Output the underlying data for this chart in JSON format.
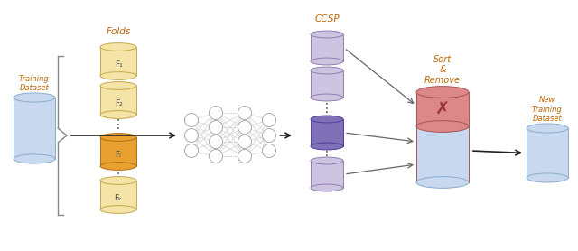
{
  "fig_width": 6.4,
  "fig_height": 2.78,
  "dpi": 100,
  "bg_color": "#ffffff",
  "title_folds": "Folds",
  "title_ccsp": "CCSP",
  "label_training": "Training\nDataset",
  "label_new_training": "New\nTraining\nDataset",
  "label_sort": "Sort\n&\nRemove",
  "fold_labels": [
    "F₁",
    "F₂",
    "Fᵢ",
    "Fₖ"
  ],
  "cyl_blue_color": "#c8d8ee",
  "cyl_blue_edge": "#8aadcc",
  "cyl_yellow_color": "#f5e4a8",
  "cyl_yellow_edge": "#c8a84b",
  "cyl_orange_color": "#e8a030",
  "cyl_orange_edge": "#b07010",
  "cyl_purple_light": "#ccc4e0",
  "cyl_purple_light_edge": "#9080b0",
  "cyl_purple_dark": "#8070b8",
  "cyl_purple_dark_edge": "#5040a0",
  "cyl_red_color": "#dd8888",
  "cyl_red_edge": "#aa5555",
  "arrow_color": "#222222",
  "brace_color": "#888888",
  "text_color": "#444444",
  "label_color": "#bb6600",
  "dot_color": "#444444",
  "nn_edge_color": "#aaaaaa",
  "nn_line_color": "#cccccc",
  "x_color": "#993333"
}
